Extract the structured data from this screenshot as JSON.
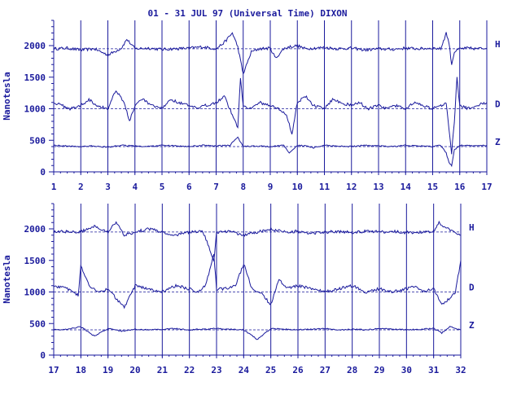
{
  "title": "01 - 31 JUL 97 (Universal Time) DIXON",
  "colors": {
    "ink": "#1a1a9c",
    "background": "#ffffff"
  },
  "chart_data": [
    {
      "type": "line",
      "title": "01 - 31 JUL 97 (Universal Time) DIXON",
      "xlabel": "",
      "ylabel": "Nanotesla",
      "xlim": [
        1,
        17
      ],
      "ylim": [
        0,
        2400
      ],
      "x_ticks": [
        "1",
        "2",
        "3",
        "4",
        "5",
        "6",
        "7",
        "8",
        "9",
        "10",
        "11",
        "12",
        "13",
        "14",
        "15",
        "16",
        "17"
      ],
      "y_ticks": [
        "0",
        "500",
        "1000",
        "1500",
        "2000"
      ],
      "grid": "vertical lines at day boundaries",
      "reference_lines": [
        {
          "component": "H",
          "value": 1950
        },
        {
          "component": "D",
          "value": 1000
        },
        {
          "component": "Z",
          "value": 400
        }
      ],
      "series": [
        {
          "name": "H",
          "x": [
            1,
            1.5,
            2,
            2.5,
            3,
            3.5,
            3.7,
            4,
            4.5,
            5,
            5.5,
            6,
            6.5,
            7,
            7.3,
            7.6,
            7.8,
            8,
            8.3,
            8.6,
            9,
            9.2,
            9.5,
            9.7,
            10,
            10.3,
            10.6,
            11,
            11.5,
            12,
            12.5,
            13,
            13.5,
            14,
            14.5,
            15,
            15.3,
            15.5,
            15.6,
            15.7,
            15.8,
            16,
            16.3,
            16.6,
            17
          ],
          "values": [
            1950,
            1960,
            1930,
            1950,
            1850,
            1960,
            2100,
            1950,
            1960,
            1940,
            1950,
            1960,
            1980,
            1950,
            2050,
            2200,
            1980,
            1550,
            1900,
            1950,
            1960,
            1800,
            1950,
            1980,
            2000,
            1950,
            1960,
            1970,
            1950,
            1960,
            1930,
            1950,
            1940,
            1960,
            1950,
            1960,
            1950,
            2200,
            2050,
            1700,
            1900,
            1950,
            1960,
            1950,
            1960
          ]
        },
        {
          "name": "D",
          "x": [
            1,
            1.3,
            1.6,
            2,
            2.3,
            2.6,
            3,
            3.3,
            3.6,
            3.8,
            4,
            4.3,
            4.6,
            5,
            5.3,
            5.6,
            6,
            6.3,
            6.6,
            7,
            7.3,
            7.6,
            7.8,
            7.9,
            8,
            8.3,
            8.6,
            9,
            9.3,
            9.6,
            9.8,
            10,
            10.3,
            10.6,
            11,
            11.3,
            11.6,
            12,
            12.3,
            12.6,
            13,
            13.3,
            13.6,
            14,
            14.3,
            14.6,
            15,
            15.3,
            15.5,
            15.6,
            15.7,
            15.8,
            15.9,
            16,
            16.3,
            16.6,
            17
          ],
          "values": [
            1100,
            1050,
            1000,
            1050,
            1150,
            1050,
            1000,
            1300,
            1100,
            800,
            1050,
            1150,
            1050,
            1000,
            1150,
            1100,
            1050,
            1000,
            1050,
            1100,
            1200,
            900,
            700,
            1500,
            1050,
            1000,
            1100,
            1050,
            1000,
            900,
            600,
            1100,
            1200,
            1050,
            1000,
            1150,
            1100,
            1050,
            1100,
            1000,
            1050,
            1000,
            1050,
            1000,
            1100,
            1050,
            1000,
            1050,
            1100,
            700,
            300,
            800,
            1500,
            1050,
            1000,
            1050,
            1100
          ]
        },
        {
          "name": "Z",
          "x": [
            1,
            1.5,
            2,
            2.5,
            3,
            3.5,
            4,
            4.5,
            5,
            5.5,
            6,
            6.5,
            7,
            7.5,
            7.8,
            8,
            8.5,
            9,
            9.5,
            9.7,
            10,
            10.3,
            10.6,
            11,
            11.5,
            12,
            12.5,
            13,
            13.5,
            14,
            14.5,
            15,
            15.3,
            15.5,
            15.6,
            15.7,
            15.8,
            16,
            16.5,
            17
          ],
          "values": [
            420,
            410,
            400,
            410,
            390,
            420,
            410,
            400,
            420,
            410,
            400,
            420,
            410,
            420,
            550,
            400,
            410,
            400,
            420,
            300,
            420,
            410,
            380,
            420,
            410,
            400,
            420,
            410,
            400,
            420,
            410,
            400,
            420,
            300,
            150,
            100,
            350,
            420,
            410,
            420
          ]
        }
      ]
    },
    {
      "type": "line",
      "xlabel": "",
      "ylabel": "Nanotesla",
      "xlim": [
        17,
        32
      ],
      "ylim": [
        0,
        2400
      ],
      "x_ticks": [
        "17",
        "18",
        "19",
        "20",
        "21",
        "22",
        "23",
        "24",
        "25",
        "26",
        "27",
        "28",
        "29",
        "30",
        "31",
        "32"
      ],
      "y_ticks": [
        "0",
        "500",
        "1000",
        "1500",
        "2000"
      ],
      "grid": "vertical lines at day boundaries",
      "reference_lines": [
        {
          "component": "H",
          "value": 1950
        },
        {
          "component": "D",
          "value": 1000
        },
        {
          "component": "Z",
          "value": 400
        }
      ],
      "series": [
        {
          "name": "H",
          "x": [
            17,
            17.5,
            18,
            18.5,
            19,
            19.3,
            19.6,
            20,
            20.5,
            21,
            21.5,
            22,
            22.5,
            22.9,
            23,
            23.5,
            24,
            24.5,
            25,
            25.5,
            26,
            26.5,
            27,
            27.5,
            28,
            28.5,
            29,
            29.5,
            30,
            30.5,
            31,
            31.2,
            31.5,
            31.8,
            32
          ],
          "values": [
            1950,
            1960,
            1950,
            2050,
            1950,
            2100,
            1900,
            1950,
            2000,
            1950,
            1900,
            1950,
            1960,
            1500,
            1950,
            1960,
            1900,
            1950,
            2000,
            1950,
            1960,
            1930,
            1950,
            1960,
            1940,
            1960,
            1950,
            1960,
            1940,
            1950,
            1960,
            2100,
            2000,
            1950,
            1900
          ]
        },
        {
          "name": "D",
          "x": [
            17,
            17.5,
            17.9,
            18,
            18.3,
            18.6,
            19,
            19.3,
            19.6,
            20,
            20.5,
            21,
            21.5,
            22,
            22.3,
            22.6,
            22.9,
            23,
            23.3,
            23.7,
            24,
            24.3,
            24.6,
            25,
            25.3,
            25.6,
            26,
            26.5,
            27,
            27.5,
            28,
            28.5,
            29,
            29.5,
            30,
            30.3,
            30.6,
            31,
            31.3,
            31.6,
            31.8,
            32
          ],
          "values": [
            1100,
            1050,
            950,
            1400,
            1100,
            1000,
            1050,
            900,
            750,
            1100,
            1050,
            1000,
            1100,
            1050,
            1000,
            1100,
            1600,
            1050,
            1050,
            1100,
            1450,
            1050,
            1000,
            800,
            1200,
            1050,
            1100,
            1050,
            1000,
            1050,
            1100,
            1000,
            1050,
            1000,
            1050,
            1100,
            1000,
            1050,
            800,
            900,
            1000,
            1500
          ]
        },
        {
          "name": "Z",
          "x": [
            17,
            17.5,
            18,
            18.5,
            19,
            19.5,
            20,
            20.5,
            21,
            21.5,
            22,
            22.5,
            23,
            23.5,
            24,
            24.5,
            25,
            25.5,
            26,
            26.5,
            27,
            27.5,
            28,
            28.5,
            29,
            29.5,
            30,
            30.5,
            31,
            31.3,
            31.6,
            32
          ],
          "values": [
            400,
            410,
            450,
            300,
            420,
            380,
            410,
            400,
            410,
            420,
            400,
            410,
            420,
            410,
            400,
            250,
            420,
            410,
            400,
            410,
            420,
            400,
            410,
            400,
            420,
            410,
            400,
            410,
            420,
            350,
            450,
            400
          ]
        }
      ]
    }
  ],
  "panels": [
    {
      "ylabel": "Nanotesla",
      "series_labels": [
        "H",
        "D",
        "Z"
      ]
    },
    {
      "ylabel": "Nanotesla",
      "series_labels": [
        "H",
        "D",
        "Z"
      ]
    }
  ]
}
